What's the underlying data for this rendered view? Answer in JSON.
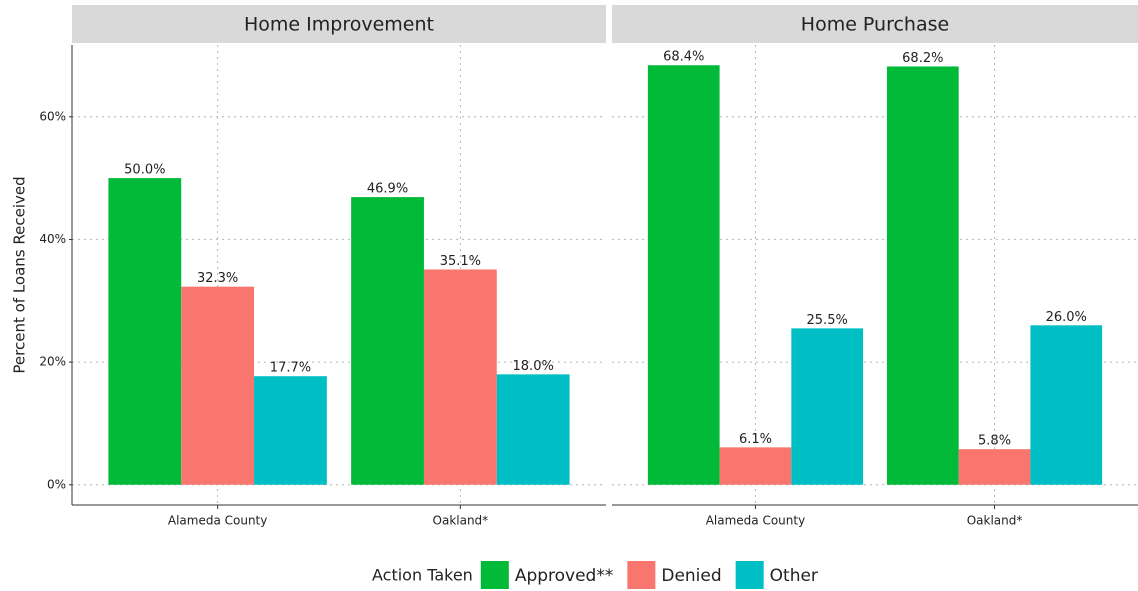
{
  "chart_data": [
    {
      "type": "bar",
      "title": "Home Improvement",
      "ylabel": "Percent of Loans Received",
      "legend_title": "Action Taken",
      "categories": [
        "Alameda County",
        "Oakland*"
      ],
      "series": [
        {
          "name": "Approved**",
          "color": "#00BA38",
          "values": [
            50.0,
            46.9
          ],
          "value_labels": [
            "50.0%",
            "46.9%"
          ]
        },
        {
          "name": "Denied",
          "color": "#F8766D",
          "values": [
            32.3,
            35.1
          ],
          "value_labels": [
            "32.3%",
            "35.1%"
          ]
        },
        {
          "name": "Other",
          "color": "#00BFC4",
          "values": [
            17.7,
            18.0
          ],
          "value_labels": [
            "17.7%",
            "18.0%"
          ]
        }
      ],
      "ylim": [
        -3.3,
        71.7
      ],
      "yticks": [
        {
          "value": 0,
          "label": "0%"
        },
        {
          "value": 20,
          "label": "20%"
        },
        {
          "value": 40,
          "label": "40%"
        },
        {
          "value": 60,
          "label": "60%"
        }
      ],
      "grid": true
    },
    {
      "type": "bar",
      "title": "Home Purchase",
      "categories": [
        "Alameda County",
        "Oakland*"
      ],
      "series": [
        {
          "name": "Approved**",
          "color": "#00BA38",
          "values": [
            68.4,
            68.2
          ],
          "value_labels": [
            "68.4%",
            "68.2%"
          ]
        },
        {
          "name": "Denied",
          "color": "#F8766D",
          "values": [
            6.1,
            5.8
          ],
          "value_labels": [
            "6.1%",
            "5.8%"
          ]
        },
        {
          "name": "Other",
          "color": "#00BFC4",
          "values": [
            25.5,
            26.0
          ],
          "value_labels": [
            "25.5%",
            "26.0%"
          ]
        }
      ],
      "ylim": [
        -3.3,
        71.7
      ],
      "yticks": [
        {
          "value": 0,
          "label": "0%"
        },
        {
          "value": 20,
          "label": "20%"
        },
        {
          "value": 40,
          "label": "40%"
        },
        {
          "value": 60,
          "label": "60%"
        }
      ],
      "grid": true
    }
  ]
}
